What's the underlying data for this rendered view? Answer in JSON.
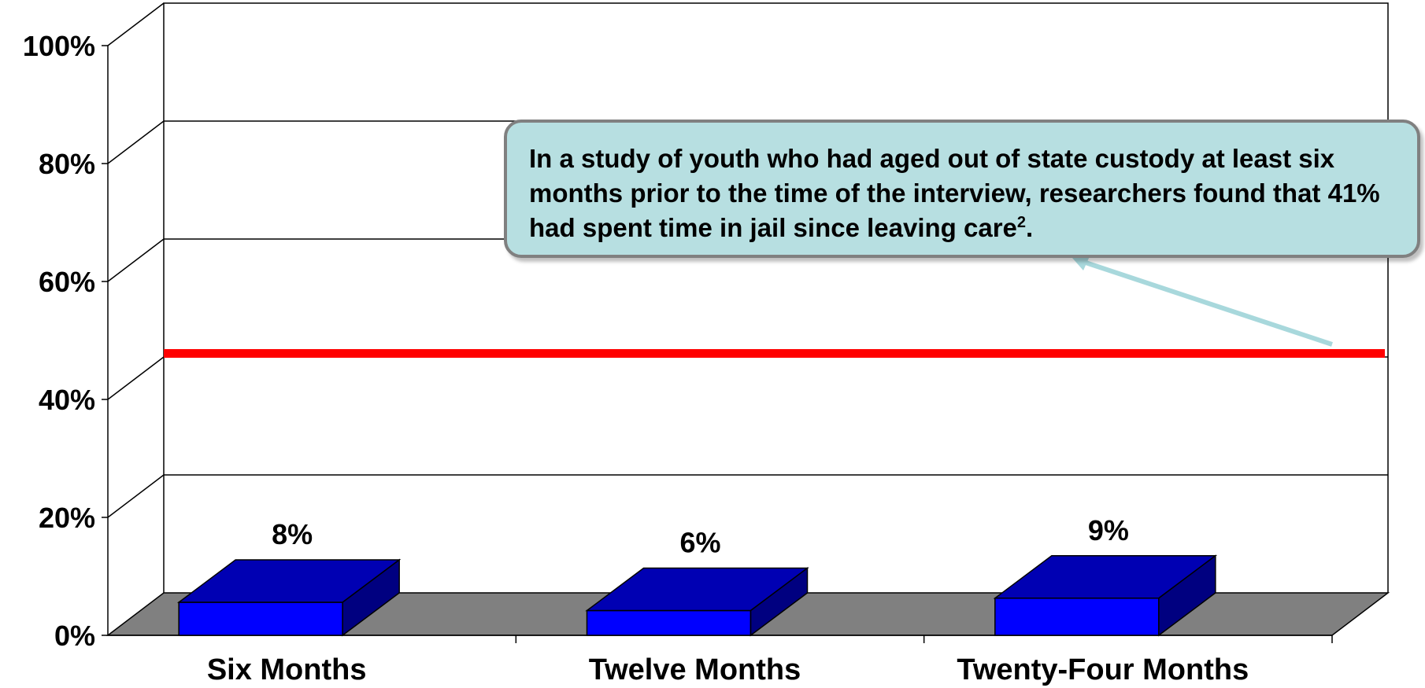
{
  "chart_data": {
    "type": "bar",
    "categories": [
      "Six Months",
      "Twelve Months",
      "Twenty-Four Months"
    ],
    "values": [
      8,
      6,
      9
    ],
    "value_labels": [
      "8%",
      "6%",
      "9%"
    ],
    "y_ticks": [
      "0%",
      "20%",
      "40%",
      "60%",
      "80%",
      "100%"
    ],
    "ylim": [
      0,
      100
    ],
    "grid": true,
    "reference_line": {
      "value": 41,
      "color": "#ff0000"
    },
    "bar_colors": {
      "front": "#0000ff",
      "top": "#0000b3",
      "side": "#000080"
    },
    "floor_color": "#808080",
    "annotation": {
      "text": "In a study of youth who had aged out of state custody at least six months prior to the time of the interview, researchers found that 41% had spent time in jail since leaving care",
      "superscript": "2",
      "suffix": ".",
      "background": "#b7dfe1",
      "arrow_color": "#a8d8dc"
    }
  }
}
